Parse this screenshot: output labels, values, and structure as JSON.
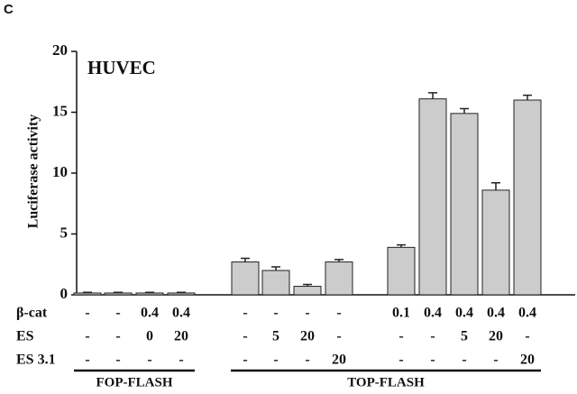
{
  "panel": "C",
  "chart_data": {
    "type": "bar",
    "title": "HUVEC",
    "ylabel": "Luciferase activity",
    "values": [
      0.15,
      0.15,
      0.15,
      0.15,
      2.7,
      2.0,
      0.7,
      2.7,
      3.9,
      16.1,
      14.9,
      8.6,
      16.0
    ],
    "errors": [
      0.05,
      0.05,
      0.05,
      0.05,
      0.3,
      0.3,
      0.15,
      0.2,
      0.2,
      0.5,
      0.4,
      0.6,
      0.4
    ],
    "color": "#cccccc",
    "ylim": [
      0,
      20
    ],
    "yticks": [
      0,
      5,
      10,
      15,
      20
    ],
    "conditions": [
      {
        "name": "β-cat",
        "values": [
          "-",
          "-",
          "0.4",
          "0.4",
          "-",
          "-",
          "-",
          "-",
          "0.1",
          "0.4",
          "0.4",
          "0.4",
          "0.4"
        ]
      },
      {
        "name": "ES",
        "values": [
          "-",
          "-",
          "0",
          "20",
          "-",
          "5",
          "20",
          "-",
          "-",
          "-",
          "5",
          "20",
          "-"
        ]
      },
      {
        "name": "ES 3.1",
        "values": [
          "-",
          "-",
          "-",
          "-",
          "-",
          "-",
          "-",
          "20",
          "-",
          "-",
          "-",
          "-",
          "20"
        ]
      }
    ],
    "groups": [
      "FOP-FLASH",
      "TOP-FLASH"
    ]
  }
}
